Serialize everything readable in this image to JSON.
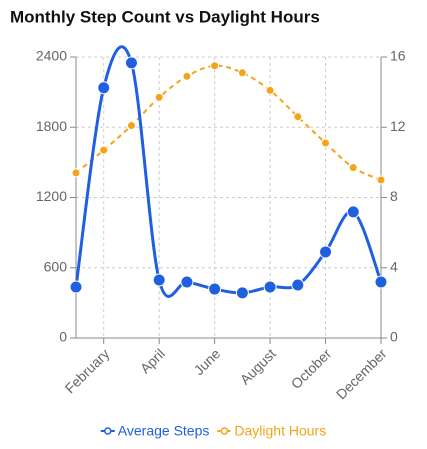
{
  "chart_data": {
    "type": "line",
    "title": "Monthly Step Count vs Daylight Hours",
    "categories": [
      null,
      "February",
      null,
      "April",
      null,
      "June",
      null,
      "August",
      null,
      "October",
      null,
      "December"
    ],
    "series": [
      {
        "name": "Average Steps",
        "color": "#1f5fe0",
        "values": [
          436,
          2137,
          2350,
          495,
          478,
          418,
          385,
          436,
          453,
          735,
          1077,
          478
        ]
      },
      {
        "name": "Daylight Hours",
        "color": "#f5a31a",
        "axis": "y2",
        "dashed": true,
        "values": [
          9.4,
          10.7,
          12.1,
          13.7,
          14.9,
          15.5,
          15.1,
          14.1,
          12.6,
          11.1,
          9.7,
          9.0
        ]
      }
    ],
    "ylim": [
      0,
      2400
    ],
    "yticks": [
      0,
      600,
      1200,
      1800,
      2400
    ],
    "y2lim": [
      0,
      16
    ],
    "y2ticks": [
      0,
      4,
      8,
      12,
      16
    ],
    "grid": true,
    "legend": "bottom"
  }
}
